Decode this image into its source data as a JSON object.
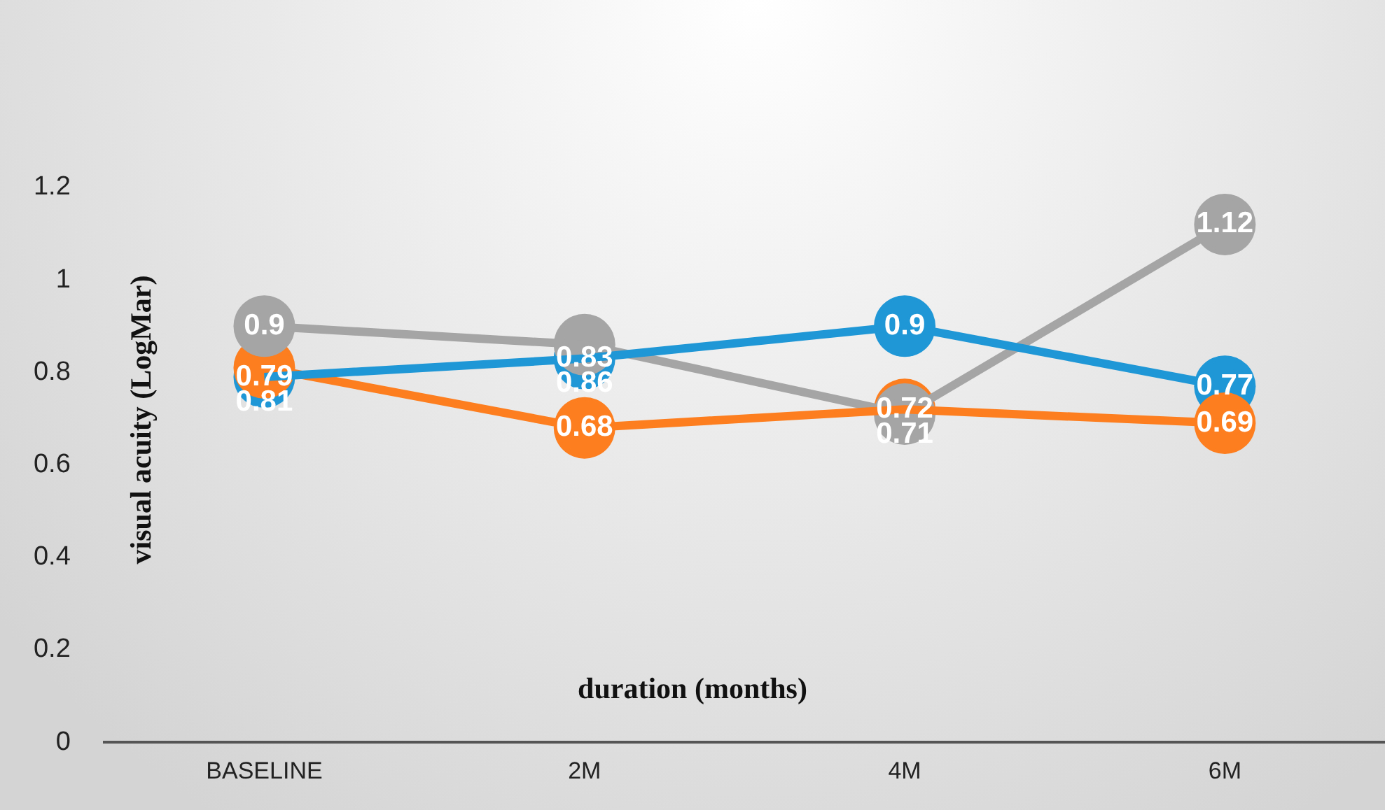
{
  "chart_data": {
    "type": "line",
    "xlabel": "duration (months)",
    "ylabel": "visual acuity (LogMar)",
    "categories": [
      "BASELINE",
      "2M",
      "4M",
      "6M"
    ],
    "series": [
      {
        "color": "#1f97d6",
        "values": [
          0.79,
          0.83,
          0.9,
          0.77
        ]
      },
      {
        "color": "#fd7e1f",
        "values": [
          0.81,
          0.68,
          0.72,
          0.69
        ]
      },
      {
        "color": "#a5a5a5",
        "values": [
          0.9,
          0.86,
          0.71,
          1.12
        ]
      }
    ],
    "ylim": [
      0,
      1.2
    ],
    "yticks": [
      0,
      0.2,
      0.4,
      0.6,
      0.8,
      1,
      1.2
    ],
    "grid": false,
    "legend": false,
    "marker": "circle",
    "line_style": "solid",
    "data_labels": true
  }
}
